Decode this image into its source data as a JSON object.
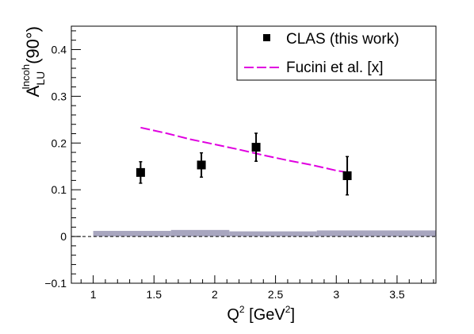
{
  "chart_data": {
    "type": "scatter",
    "xlabel": {
      "base": "Q",
      "sup": "2",
      "unit_open": " [GeV",
      "unit_sup": "2",
      "unit_close": "]"
    },
    "ylabel": {
      "base": "A",
      "sup": "Incoh",
      "sub": "LU",
      "arg": "(90°)"
    },
    "xlim": [
      0.82,
      3.82
    ],
    "ylim": [
      -0.1,
      0.45
    ],
    "xticks": [
      1,
      1.5,
      2,
      2.5,
      3,
      3.5
    ],
    "xtick_labels": [
      "1",
      "1.5",
      "2",
      "2.5",
      "3",
      "3.5"
    ],
    "yticks": [
      -0.1,
      0,
      0.1,
      0.2,
      0.3,
      0.4
    ],
    "ytick_labels": [
      "−0.1",
      "0",
      "0.1",
      "0.2",
      "0.3",
      "0.4"
    ],
    "grid": false,
    "zero_line": {
      "y": 0,
      "style": "dashed"
    },
    "legend": {
      "placement": "top-right",
      "entries": [
        {
          "label": "CLAS (this work)",
          "marker": "square",
          "color": "#000000"
        },
        {
          "label": "Fucini et al. [x]",
          "marker": "dashed-line",
          "color": "#e000e0"
        }
      ]
    },
    "series": [
      {
        "name": "CLAS (this work)",
        "kind": "points",
        "color": "#000000",
        "points": [
          {
            "x": 1.39,
            "y": 0.137,
            "err": 0.023
          },
          {
            "x": 1.89,
            "y": 0.153,
            "err": 0.026
          },
          {
            "x": 2.34,
            "y": 0.191,
            "err": 0.03
          },
          {
            "x": 3.09,
            "y": 0.13,
            "err": 0.041
          }
        ]
      },
      {
        "name": "Fucini et al. [x]",
        "kind": "line",
        "color": "#e000e0",
        "x": [
          1.39,
          1.6,
          1.8,
          2.0,
          2.2,
          2.4,
          2.6,
          2.8,
          3.0,
          3.12
        ],
        "y": [
          0.233,
          0.221,
          0.208,
          0.197,
          0.186,
          0.174,
          0.163,
          0.153,
          0.141,
          0.136
        ]
      },
      {
        "name": "systematic band",
        "kind": "band",
        "color": "#a8a6bf",
        "segments": [
          {
            "x0": 1.0,
            "x1": 1.64,
            "y0": 0.0,
            "y1": 0.012
          },
          {
            "x0": 1.64,
            "x1": 2.12,
            "y0": 0.0,
            "y1": 0.014
          },
          {
            "x0": 2.12,
            "x1": 2.84,
            "y0": 0.0,
            "y1": 0.011
          },
          {
            "x0": 2.84,
            "x1": 3.82,
            "y0": 0.0,
            "y1": 0.013
          }
        ]
      }
    ]
  }
}
